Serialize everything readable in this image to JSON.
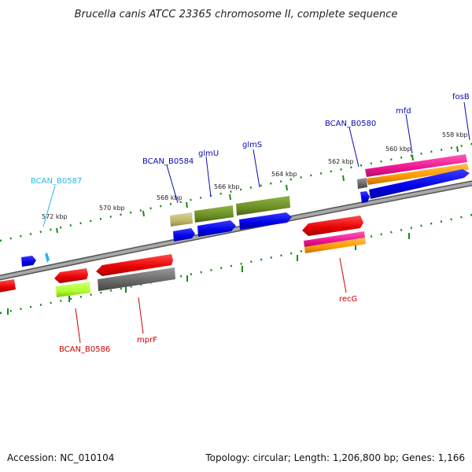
{
  "title": "Brucella canis ATCC 23365 chromosome II, complete sequence",
  "footer": {
    "accession": "Accession: NC_010104",
    "summary": "Topology: circular; Length: 1,206,800 bp; Genes: 1,166"
  },
  "scale_labels": [
    "558 kbp",
    "560 kbp",
    "562 kbp",
    "564 kbp",
    "566 kbp",
    "568 kbp",
    "570 kbp",
    "572 kbp"
  ],
  "gene_labels": [
    {
      "text": "fosB",
      "color": "#0a0ab4"
    },
    {
      "text": "mfd",
      "color": "#0a0ab4"
    },
    {
      "text": "BCAN_B0580",
      "color": "#0a0ab4"
    },
    {
      "text": "glmS",
      "color": "#0a0ab4"
    },
    {
      "text": "glmU",
      "color": "#0a0ab4"
    },
    {
      "text": "BCAN_B0584",
      "color": "#0a0ab4"
    },
    {
      "text": "BCAN_B0587",
      "color": "#29b8e6"
    },
    {
      "text": "BCAN_B0586",
      "color": "#cc0000"
    },
    {
      "text": "mprF",
      "color": "#cc0000"
    },
    {
      "text": "recG",
      "color": "#cc0000"
    }
  ],
  "colors": {
    "forward_cds": "#0000e6",
    "reverse_cds": "#e60000",
    "backbone": "#8c8c8c",
    "tick": "#228b22",
    "olive": "#6b8e23",
    "khaki": "#bdb76b",
    "pink": "#ee1493",
    "orange": "#ff9900",
    "lime": "#adff2f",
    "gray": "#666666",
    "cyan": "#29b8e6"
  }
}
